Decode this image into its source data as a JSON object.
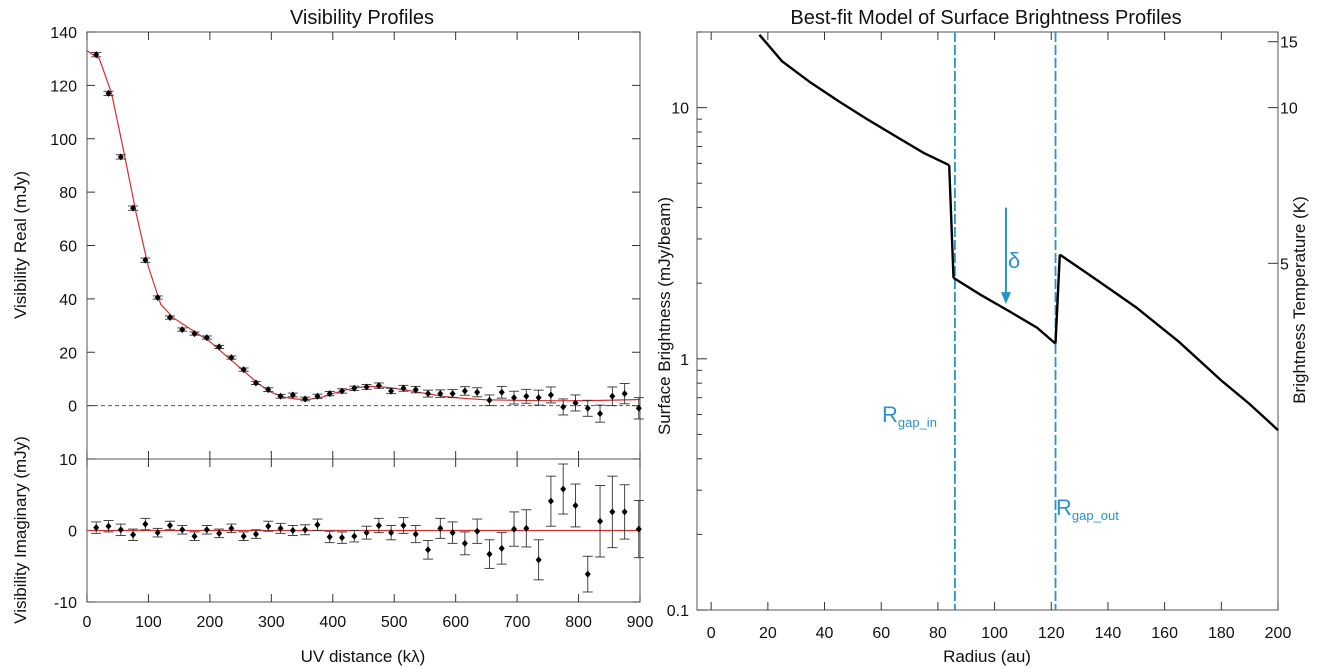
{
  "chart_data": [
    {
      "type": "scatter",
      "title": "Visibility Profiles",
      "panels": [
        {
          "name": "real",
          "ylabel": "Visibility Real (mJy)",
          "xlim": [
            0,
            900
          ],
          "ylim": [
            -20,
            140
          ],
          "yticks": [
            0,
            20,
            40,
            60,
            80,
            100,
            120,
            140
          ],
          "zero_line": true,
          "points": [
            {
              "x": 15,
              "y": 131.5,
              "err": 0.8
            },
            {
              "x": 35,
              "y": 117,
              "err": 0.8
            },
            {
              "x": 55,
              "y": 93.2,
              "err": 0.8
            },
            {
              "x": 75,
              "y": 74,
              "err": 0.8
            },
            {
              "x": 95,
              "y": 54.5,
              "err": 0.8
            },
            {
              "x": 115,
              "y": 40.5,
              "err": 0.6
            },
            {
              "x": 135,
              "y": 33,
              "err": 0.6
            },
            {
              "x": 155,
              "y": 28.5,
              "err": 0.6
            },
            {
              "x": 175,
              "y": 27,
              "err": 0.6
            },
            {
              "x": 195,
              "y": 25.5,
              "err": 0.6
            },
            {
              "x": 215,
              "y": 22,
              "err": 0.6
            },
            {
              "x": 235,
              "y": 18,
              "err": 0.6
            },
            {
              "x": 255,
              "y": 13.5,
              "err": 0.6
            },
            {
              "x": 275,
              "y": 8.5,
              "err": 0.6
            },
            {
              "x": 295,
              "y": 6,
              "err": 0.7
            },
            {
              "x": 315,
              "y": 3.5,
              "err": 0.7
            },
            {
              "x": 335,
              "y": 4,
              "err": 0.7
            },
            {
              "x": 355,
              "y": 2.5,
              "err": 0.7
            },
            {
              "x": 375,
              "y": 3.5,
              "err": 0.8
            },
            {
              "x": 395,
              "y": 4.5,
              "err": 0.8
            },
            {
              "x": 415,
              "y": 5.5,
              "err": 0.8
            },
            {
              "x": 435,
              "y": 6.5,
              "err": 0.8
            },
            {
              "x": 455,
              "y": 7,
              "err": 0.9
            },
            {
              "x": 475,
              "y": 7.5,
              "err": 1
            },
            {
              "x": 495,
              "y": 5.5,
              "err": 1
            },
            {
              "x": 515,
              "y": 6.5,
              "err": 1.1
            },
            {
              "x": 535,
              "y": 6,
              "err": 1.2
            },
            {
              "x": 555,
              "y": 4.5,
              "err": 1.3
            },
            {
              "x": 575,
              "y": 4.5,
              "err": 1.4
            },
            {
              "x": 595,
              "y": 4.5,
              "err": 1.5
            },
            {
              "x": 615,
              "y": 5.5,
              "err": 1.6
            },
            {
              "x": 635,
              "y": 5,
              "err": 1.7
            },
            {
              "x": 655,
              "y": 2,
              "err": 2
            },
            {
              "x": 675,
              "y": 5,
              "err": 2.2
            },
            {
              "x": 695,
              "y": 3,
              "err": 2.4
            },
            {
              "x": 715,
              "y": 3.5,
              "err": 2.6
            },
            {
              "x": 735,
              "y": 3,
              "err": 2.8
            },
            {
              "x": 755,
              "y": 4,
              "err": 3
            },
            {
              "x": 775,
              "y": -0.5,
              "err": 3
            },
            {
              "x": 795,
              "y": 1,
              "err": 3
            },
            {
              "x": 815,
              "y": -1,
              "err": 3
            },
            {
              "x": 835,
              "y": -3,
              "err": 3.2
            },
            {
              "x": 855,
              "y": 3.5,
              "err": 3.5
            },
            {
              "x": 875,
              "y": 4.5,
              "err": 3.8
            },
            {
              "x": 898,
              "y": -1,
              "err": 4
            }
          ],
          "model": [
            [
              0,
              133
            ],
            [
              20,
              130
            ],
            [
              40,
              117
            ],
            [
              60,
              95
            ],
            [
              80,
              72
            ],
            [
              100,
              52
            ],
            [
              120,
              38
            ],
            [
              140,
              33
            ],
            [
              160,
              30
            ],
            [
              180,
              27
            ],
            [
              200,
              24
            ],
            [
              220,
              20
            ],
            [
              240,
              16
            ],
            [
              260,
              12
            ],
            [
              280,
              8
            ],
            [
              300,
              5
            ],
            [
              320,
              3.2
            ],
            [
              340,
              2.5
            ],
            [
              360,
              2.3
            ],
            [
              380,
              3
            ],
            [
              400,
              4.5
            ],
            [
              420,
              5.8
            ],
            [
              440,
              6.8
            ],
            [
              460,
              7.2
            ],
            [
              480,
              7
            ],
            [
              500,
              6.5
            ],
            [
              520,
              5.8
            ],
            [
              540,
              5
            ],
            [
              560,
              4.2
            ],
            [
              580,
              3.5
            ],
            [
              600,
              3
            ],
            [
              620,
              2.6
            ],
            [
              650,
              2.2
            ],
            [
              700,
              2
            ],
            [
              760,
              1.8
            ],
            [
              820,
              1.9
            ],
            [
              900,
              2.3
            ]
          ]
        },
        {
          "name": "imaginary",
          "ylabel": "Visibility Imaginary (mJy)",
          "xlabel": "UV distance (kλ)",
          "xlim": [
            0,
            900
          ],
          "ylim": [
            -10,
            10
          ],
          "yticks": [
            -10,
            0,
            10
          ],
          "xticks": [
            0,
            100,
            200,
            300,
            400,
            500,
            600,
            700,
            800,
            900
          ],
          "points": [
            {
              "x": 15,
              "y": 0.4,
              "err": 0.8
            },
            {
              "x": 35,
              "y": 0.6,
              "err": 0.8
            },
            {
              "x": 55,
              "y": 0.1,
              "err": 0.8
            },
            {
              "x": 75,
              "y": -0.6,
              "err": 0.8
            },
            {
              "x": 95,
              "y": 0.9,
              "err": 0.8
            },
            {
              "x": 115,
              "y": -0.3,
              "err": 0.6
            },
            {
              "x": 135,
              "y": 0.7,
              "err": 0.6
            },
            {
              "x": 155,
              "y": 0.1,
              "err": 0.6
            },
            {
              "x": 175,
              "y": -0.8,
              "err": 0.6
            },
            {
              "x": 195,
              "y": 0.1,
              "err": 0.6
            },
            {
              "x": 215,
              "y": -0.4,
              "err": 0.6
            },
            {
              "x": 235,
              "y": 0.3,
              "err": 0.6
            },
            {
              "x": 255,
              "y": -0.8,
              "err": 0.6
            },
            {
              "x": 275,
              "y": -0.5,
              "err": 0.6
            },
            {
              "x": 295,
              "y": 0.6,
              "err": 0.7
            },
            {
              "x": 315,
              "y": 0.3,
              "err": 0.7
            },
            {
              "x": 335,
              "y": 0,
              "err": 0.7
            },
            {
              "x": 355,
              "y": 0.1,
              "err": 0.7
            },
            {
              "x": 375,
              "y": 0.8,
              "err": 0.8
            },
            {
              "x": 395,
              "y": -0.9,
              "err": 0.8
            },
            {
              "x": 415,
              "y": -1,
              "err": 0.8
            },
            {
              "x": 435,
              "y": -0.8,
              "err": 0.8
            },
            {
              "x": 455,
              "y": -0.3,
              "err": 0.9
            },
            {
              "x": 475,
              "y": 0.7,
              "err": 1
            },
            {
              "x": 495,
              "y": -0.3,
              "err": 1
            },
            {
              "x": 515,
              "y": 0.7,
              "err": 1.1
            },
            {
              "x": 535,
              "y": -0.5,
              "err": 1.2
            },
            {
              "x": 555,
              "y": -2.7,
              "err": 1.3
            },
            {
              "x": 575,
              "y": 0.3,
              "err": 1.4
            },
            {
              "x": 595,
              "y": -0.3,
              "err": 1.5
            },
            {
              "x": 615,
              "y": -1.8,
              "err": 1.6
            },
            {
              "x": 635,
              "y": -0.1,
              "err": 1.7
            },
            {
              "x": 655,
              "y": -3.3,
              "err": 2
            },
            {
              "x": 675,
              "y": -2.5,
              "err": 2.2
            },
            {
              "x": 695,
              "y": 0.2,
              "err": 2.4
            },
            {
              "x": 715,
              "y": 0.3,
              "err": 2.6
            },
            {
              "x": 735,
              "y": -4.1,
              "err": 2.8
            },
            {
              "x": 755,
              "y": 4.1,
              "err": 3.5
            },
            {
              "x": 775,
              "y": 5.8,
              "err": 3.5
            },
            {
              "x": 795,
              "y": 3.5,
              "err": 3
            },
            {
              "x": 815,
              "y": -6.1,
              "err": 2.5
            },
            {
              "x": 835,
              "y": 1.3,
              "err": 5
            },
            {
              "x": 855,
              "y": 2.6,
              "err": 5
            },
            {
              "x": 875,
              "y": 2.6,
              "err": 3.8
            },
            {
              "x": 898,
              "y": 0.2,
              "err": 4
            }
          ],
          "model": [
            [
              0,
              0
            ],
            [
              900,
              0
            ]
          ]
        }
      ],
      "colors": {
        "points": "#000000",
        "model": "#d32f2f",
        "zero_line": "#555555"
      }
    },
    {
      "type": "line",
      "title": "Best-fit Model of Surface Brightness Profiles",
      "xlabel": "Radius (au)",
      "ylabel": "Surface Brightness (mJy/beam)",
      "y2label": "Brightness Temperature (K)",
      "xlim": [
        -5,
        200
      ],
      "ylim": [
        0.1,
        20
      ],
      "yscale": "log",
      "xticks": [
        0,
        20,
        40,
        60,
        80,
        100,
        120,
        140,
        160,
        180,
        200
      ],
      "yticks": [
        {
          "v": 0.1,
          "label": "0.1"
        },
        {
          "v": 1,
          "label": "1"
        },
        {
          "v": 10,
          "label": "10"
        }
      ],
      "y2ticks": [
        {
          "v": 2.4,
          "label": "5"
        },
        {
          "v": 10,
          "label": "10"
        },
        {
          "v": 18.3,
          "label": "15"
        }
      ],
      "series": [
        {
          "x": [
            17,
            25,
            35,
            45,
            55,
            65,
            75,
            84
          ],
          "y": [
            19.5,
            15.3,
            12.6,
            10.6,
            9.0,
            7.7,
            6.6,
            5.9
          ]
        },
        {
          "x": [
            84,
            85.5
          ],
          "y": [
            5.9,
            2.1
          ]
        },
        {
          "x": [
            85.5,
            95,
            105,
            115,
            121.5
          ],
          "y": [
            2.1,
            1.8,
            1.55,
            1.33,
            1.15
          ]
        },
        {
          "x": [
            121.5,
            123
          ],
          "y": [
            1.15,
            2.6
          ]
        },
        {
          "x": [
            123,
            135,
            150,
            165,
            180,
            190,
            200
          ],
          "y": [
            2.6,
            2.1,
            1.6,
            1.17,
            0.82,
            0.66,
            0.52
          ]
        }
      ],
      "gap_lines": [
        86,
        121.5
      ],
      "arrow": {
        "x": 104,
        "from": 4.0,
        "to": 1.65
      },
      "annotations": {
        "delta": "δ",
        "r_in_main": "R",
        "r_in_sub": "gap_in",
        "r_out_main": "R",
        "r_out_sub": "gap_out"
      },
      "colors": {
        "profile": "#000000",
        "gap": "#2a93c9"
      }
    }
  ]
}
